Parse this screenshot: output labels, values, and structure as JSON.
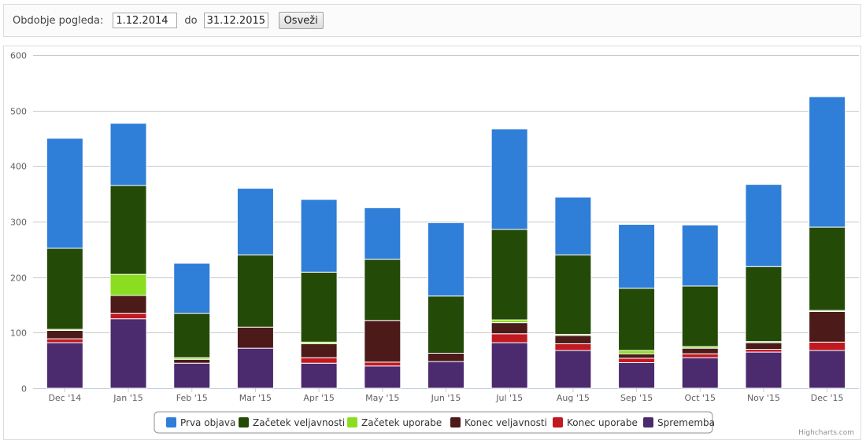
{
  "filter": {
    "period_label": "Obdobje pogleda:",
    "from_value": "1.12.2014",
    "to_label": "do",
    "to_value": "31.12.2015",
    "refresh_label": "Osveži"
  },
  "credits": "Highcharts.com",
  "colors": {
    "Prva objava": "#2f7ed8",
    "Začetek veljavnosti": "#244a08",
    "Začetek uporabe": "#8bde1f",
    "Konec veljavnosti": "#4b1a19",
    "Konec uporabe": "#c11920",
    "Sprememba": "#4b2a6e"
  },
  "chart_data": {
    "type": "bar",
    "stacked": true,
    "title": "",
    "xlabel": "",
    "ylabel": "",
    "ylim": [
      0,
      600
    ],
    "yticks": [
      0,
      100,
      200,
      300,
      400,
      500,
      600
    ],
    "grid": true,
    "legend_position": "bottom-center",
    "categories": [
      "Dec '14",
      "Jan '15",
      "Feb '15",
      "Mar '15",
      "Apr '15",
      "May '15",
      "Jun '15",
      "Jul '15",
      "Aug '15",
      "Sep '15",
      "Oct '15",
      "Nov '15",
      "Dec '15"
    ],
    "series": [
      {
        "name": "Sprememba",
        "values": [
          82,
          125,
          45,
          72,
          45,
          40,
          48,
          82,
          68,
          46,
          55,
          65,
          68
        ]
      },
      {
        "name": "Konec uporabe",
        "values": [
          7,
          10,
          0,
          0,
          10,
          7,
          0,
          16,
          12,
          8,
          7,
          5,
          15
        ]
      },
      {
        "name": "Konec veljavnosti",
        "values": [
          15,
          32,
          7,
          38,
          25,
          75,
          15,
          20,
          15,
          8,
          10,
          12,
          55
        ]
      },
      {
        "name": "Začetek uporabe",
        "values": [
          2,
          38,
          3,
          0,
          3,
          0,
          0,
          5,
          2,
          6,
          3,
          2,
          2
        ]
      },
      {
        "name": "Začetek veljavnosti",
        "values": [
          146,
          160,
          80,
          130,
          126,
          110,
          103,
          163,
          143,
          112,
          109,
          135,
          150
        ]
      },
      {
        "name": "Prva objava",
        "values": [
          198,
          112,
          90,
          120,
          131,
          93,
          132,
          181,
          104,
          115,
          110,
          148,
          235
        ]
      }
    ],
    "legend_order": [
      "Prva objava",
      "Začetek veljavnosti",
      "Začetek uporabe",
      "Konec veljavnosti",
      "Konec uporabe",
      "Sprememba"
    ]
  }
}
